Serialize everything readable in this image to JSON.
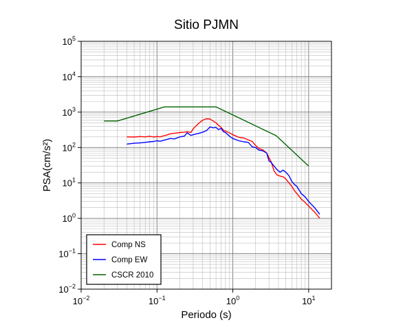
{
  "chart_data": {
    "type": "line",
    "title": "Sitio PJMN",
    "xlabel": "Periodo (s)",
    "ylabel": "PSA(cm/s²)",
    "xscale": "log",
    "yscale": "log",
    "xlim": [
      0.01,
      20
    ],
    "ylim": [
      0.01,
      100000
    ],
    "grid": true,
    "legend_position": "bottom-left",
    "x_ticks": [
      {
        "base": "10",
        "exp": "−2",
        "value": 0.01
      },
      {
        "base": "10",
        "exp": "−1",
        "value": 0.1
      },
      {
        "base": "10",
        "exp": "0",
        "value": 1
      },
      {
        "base": "10",
        "exp": "1",
        "value": 10
      }
    ],
    "y_ticks": [
      {
        "base": "10",
        "exp": "−2",
        "value": 0.01
      },
      {
        "base": "10",
        "exp": "−1",
        "value": 0.1
      },
      {
        "base": "10",
        "exp": "0",
        "value": 1
      },
      {
        "base": "10",
        "exp": "1",
        "value": 10
      },
      {
        "base": "10",
        "exp": "2",
        "value": 100
      },
      {
        "base": "10",
        "exp": "3",
        "value": 1000
      },
      {
        "base": "10",
        "exp": "4",
        "value": 10000
      },
      {
        "base": "10",
        "exp": "5",
        "value": 100000
      }
    ],
    "series": [
      {
        "name": "Comp NS",
        "color": "#ff0000",
        "points": [
          [
            0.04,
            200
          ],
          [
            0.05,
            198
          ],
          [
            0.06,
            205
          ],
          [
            0.07,
            200
          ],
          [
            0.08,
            208
          ],
          [
            0.09,
            198
          ],
          [
            0.1,
            205
          ],
          [
            0.11,
            200
          ],
          [
            0.12,
            212
          ],
          [
            0.13,
            220
          ],
          [
            0.15,
            245
          ],
          [
            0.17,
            252
          ],
          [
            0.2,
            265
          ],
          [
            0.23,
            270
          ],
          [
            0.25,
            280
          ],
          [
            0.28,
            265
          ],
          [
            0.3,
            340
          ],
          [
            0.35,
            470
          ],
          [
            0.4,
            590
          ],
          [
            0.45,
            650
          ],
          [
            0.5,
            640
          ],
          [
            0.55,
            560
          ],
          [
            0.6,
            500
          ],
          [
            0.65,
            420
          ],
          [
            0.7,
            370
          ],
          [
            0.75,
            310
          ],
          [
            0.8,
            290
          ],
          [
            0.9,
            260
          ],
          [
            1.0,
            230
          ],
          [
            1.2,
            195
          ],
          [
            1.4,
            185
          ],
          [
            1.6,
            165
          ],
          [
            1.8,
            148
          ],
          [
            2.0,
            115
          ],
          [
            2.2,
            95
          ],
          [
            2.5,
            85
          ],
          [
            2.8,
            70
          ],
          [
            3.0,
            52
          ],
          [
            3.2,
            40
          ],
          [
            3.5,
            22
          ],
          [
            3.8,
            17
          ],
          [
            4.2,
            15.5
          ],
          [
            4.6,
            15
          ],
          [
            5.0,
            13
          ],
          [
            5.5,
            10
          ],
          [
            6.0,
            8
          ],
          [
            6.5,
            6
          ],
          [
            7.0,
            5
          ],
          [
            8.0,
            3.5
          ],
          [
            9.0,
            2.8
          ],
          [
            10.0,
            2.2
          ],
          [
            12.0,
            1.5
          ],
          [
            14.0,
            1.0
          ]
        ]
      },
      {
        "name": "Comp EW",
        "color": "#0000ff",
        "points": [
          [
            0.04,
            125
          ],
          [
            0.05,
            132
          ],
          [
            0.06,
            135
          ],
          [
            0.07,
            140
          ],
          [
            0.08,
            145
          ],
          [
            0.09,
            148
          ],
          [
            0.1,
            155
          ],
          [
            0.11,
            150
          ],
          [
            0.12,
            158
          ],
          [
            0.13,
            165
          ],
          [
            0.15,
            180
          ],
          [
            0.17,
            175
          ],
          [
            0.2,
            200
          ],
          [
            0.23,
            210
          ],
          [
            0.25,
            260
          ],
          [
            0.28,
            220
          ],
          [
            0.3,
            230
          ],
          [
            0.35,
            250
          ],
          [
            0.4,
            270
          ],
          [
            0.45,
            300
          ],
          [
            0.5,
            380
          ],
          [
            0.55,
            360
          ],
          [
            0.6,
            370
          ],
          [
            0.65,
            320
          ],
          [
            0.7,
            350
          ],
          [
            0.75,
            280
          ],
          [
            0.8,
            265
          ],
          [
            0.9,
            210
          ],
          [
            1.0,
            180
          ],
          [
            1.2,
            155
          ],
          [
            1.4,
            145
          ],
          [
            1.6,
            140
          ],
          [
            1.8,
            105
          ],
          [
            2.0,
            100
          ],
          [
            2.2,
            85
          ],
          [
            2.5,
            80
          ],
          [
            2.8,
            70
          ],
          [
            3.0,
            42
          ],
          [
            3.2,
            38
          ],
          [
            3.5,
            30
          ],
          [
            3.8,
            24
          ],
          [
            4.2,
            20
          ],
          [
            4.6,
            23
          ],
          [
            5.0,
            20
          ],
          [
            5.5,
            16
          ],
          [
            6.0,
            11
          ],
          [
            6.5,
            9
          ],
          [
            7.0,
            8
          ],
          [
            8.0,
            5
          ],
          [
            9.0,
            4
          ],
          [
            10.0,
            3
          ],
          [
            12.0,
            2
          ],
          [
            14.0,
            1.3
          ]
        ]
      },
      {
        "name": "CSCR 2010",
        "color": "#006400",
        "points": [
          [
            0.02,
            560
          ],
          [
            0.03,
            560
          ],
          [
            0.125,
            1400
          ],
          [
            0.6,
            1400
          ],
          [
            3.75,
            215
          ],
          [
            10.0,
            30
          ]
        ]
      }
    ]
  }
}
